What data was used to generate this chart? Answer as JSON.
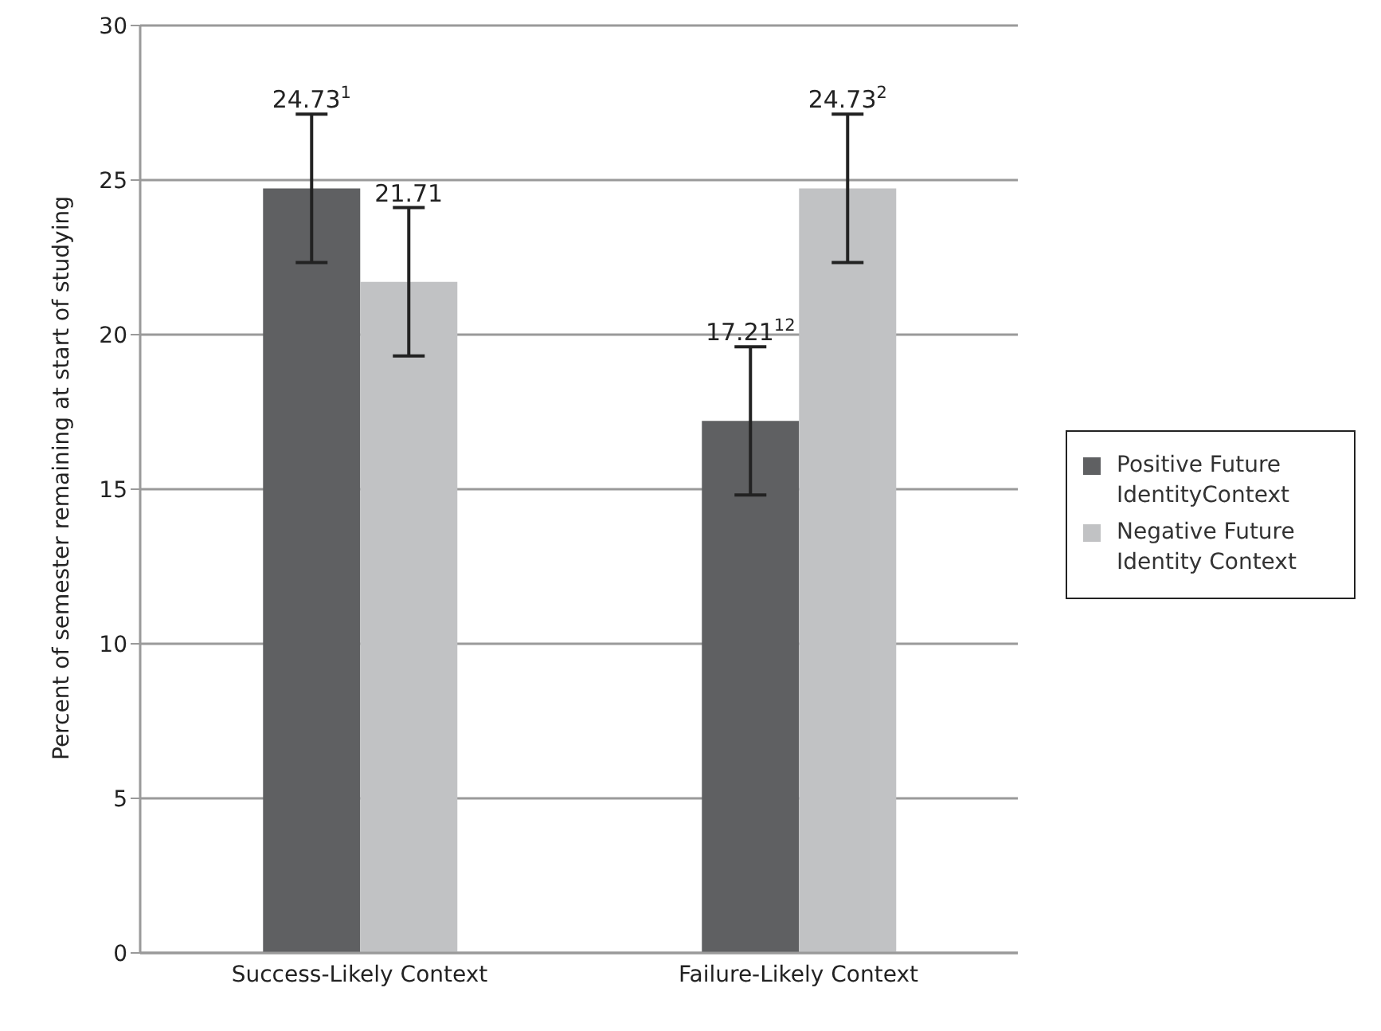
{
  "chart_data": {
    "type": "bar",
    "ylabel": "Percent of semester remaining at start of studying",
    "categories": [
      "Success-Likely Context",
      "Failure-Likely Context"
    ],
    "series": [
      {
        "name": "Positive Future IdentityContext",
        "color": "#5f6062",
        "values": [
          24.73,
          17.21
        ],
        "errors": [
          2.4,
          2.4
        ],
        "value_labels": [
          "24.73$^{1}$",
          "17.21$^{12}$"
        ]
      },
      {
        "name": "Negative Future Identity Context",
        "color": "#c1c2c4",
        "values": [
          21.71,
          24.73
        ],
        "errors": [
          2.4,
          2.4
        ],
        "value_labels": [
          "21.71",
          "24.73$^{2}$"
        ]
      }
    ],
    "ylim": [
      0,
      30
    ],
    "yticks": [
      0,
      5,
      10,
      15,
      20,
      25,
      30
    ],
    "grid": "y",
    "legend": "right"
  }
}
